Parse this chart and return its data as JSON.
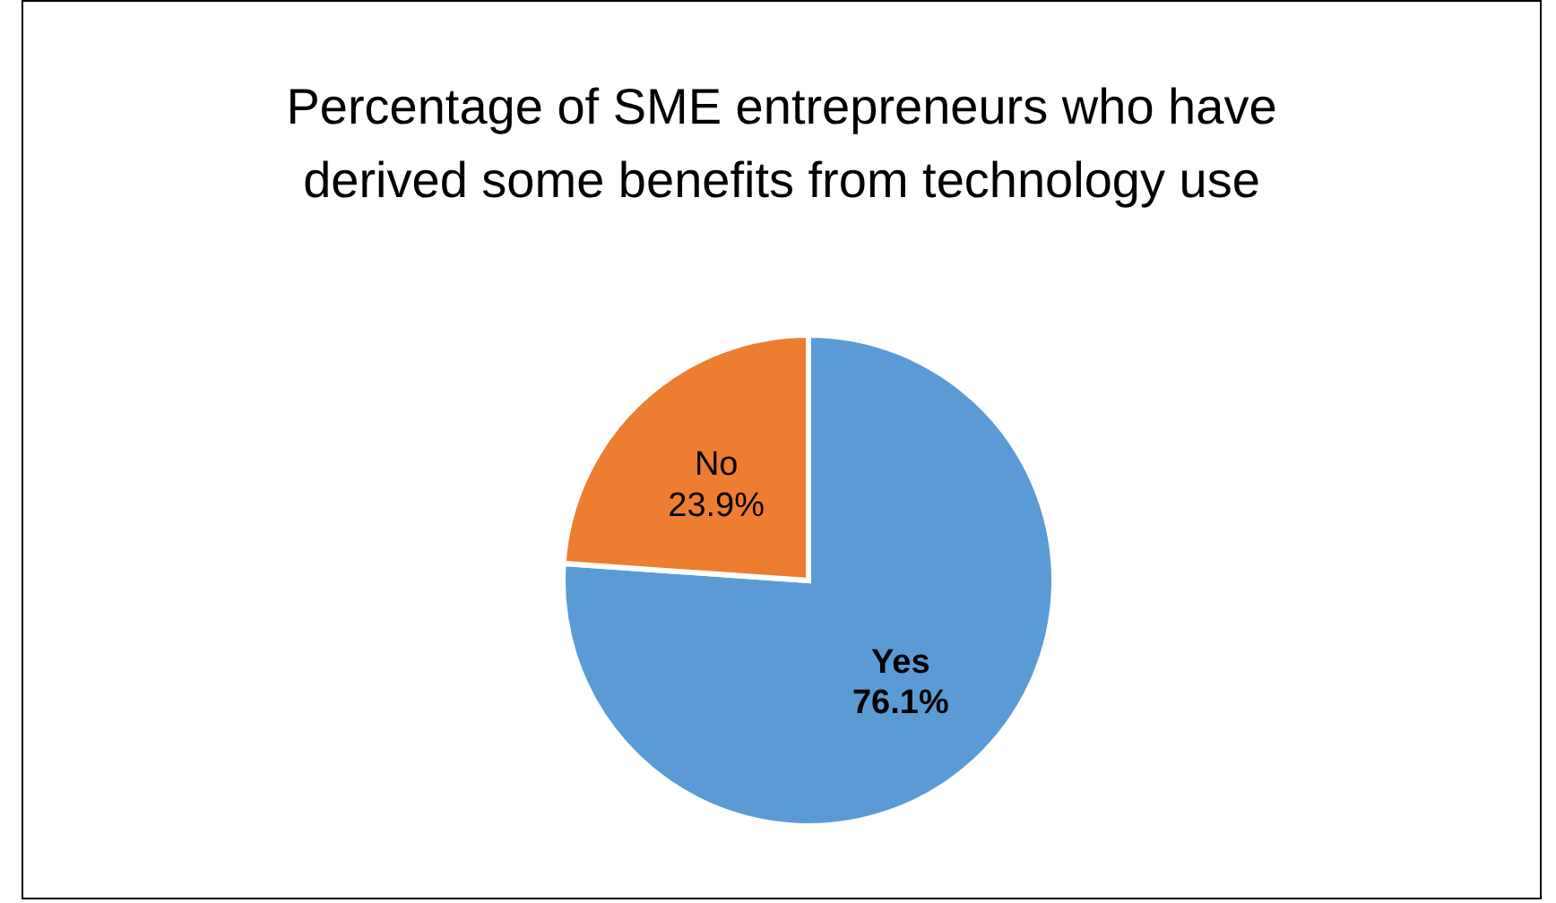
{
  "chart_data": {
    "type": "pie",
    "title": "Percentage of SME entrepreneurs who have derived some benefits from technology use",
    "categories": [
      "Yes",
      "No"
    ],
    "values": [
      76.1,
      23.9
    ],
    "value_labels": [
      "76.1%",
      "23.9%"
    ],
    "colors": [
      "#5b9bd5",
      "#ed7d31"
    ]
  }
}
